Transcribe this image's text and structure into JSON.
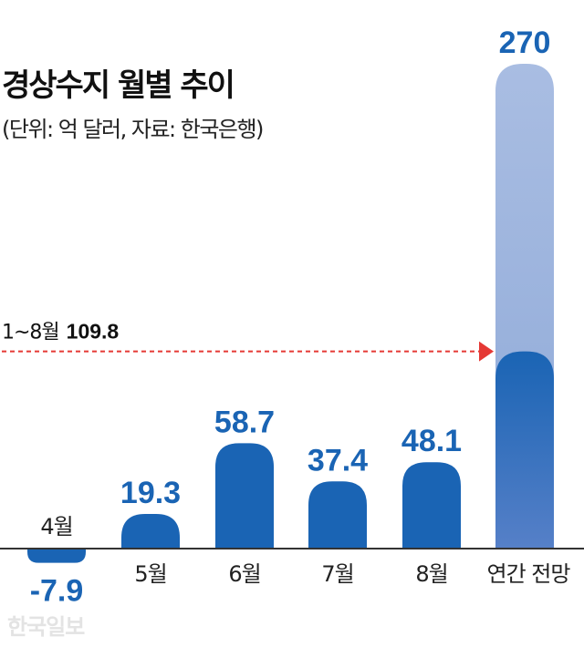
{
  "chart_data": {
    "type": "bar",
    "title": "경상수지 월별 추이",
    "subtitle": "(단위: 억 달러, 자료: 한국은행)",
    "categories": [
      "4월",
      "5월",
      "6월",
      "7월",
      "8월",
      "연간 전망"
    ],
    "values": [
      -7.9,
      19.3,
      58.7,
      37.4,
      48.1,
      270
    ],
    "value_labels": [
      "-7.9",
      "19.3",
      "58.7",
      "37.4",
      "48.1",
      "270"
    ],
    "cumulative": {
      "label": "1~8월",
      "value": 109.8,
      "value_label": "109.8"
    },
    "ylim": [
      -7.9,
      270
    ],
    "grid": false,
    "colors": {
      "bar": "#1a64b4",
      "forecast_bar": "#a2b7dd",
      "label": "#1a64b4",
      "reference_line": "#e53935",
      "axis": "#333333"
    }
  },
  "watermark": "한국일보"
}
